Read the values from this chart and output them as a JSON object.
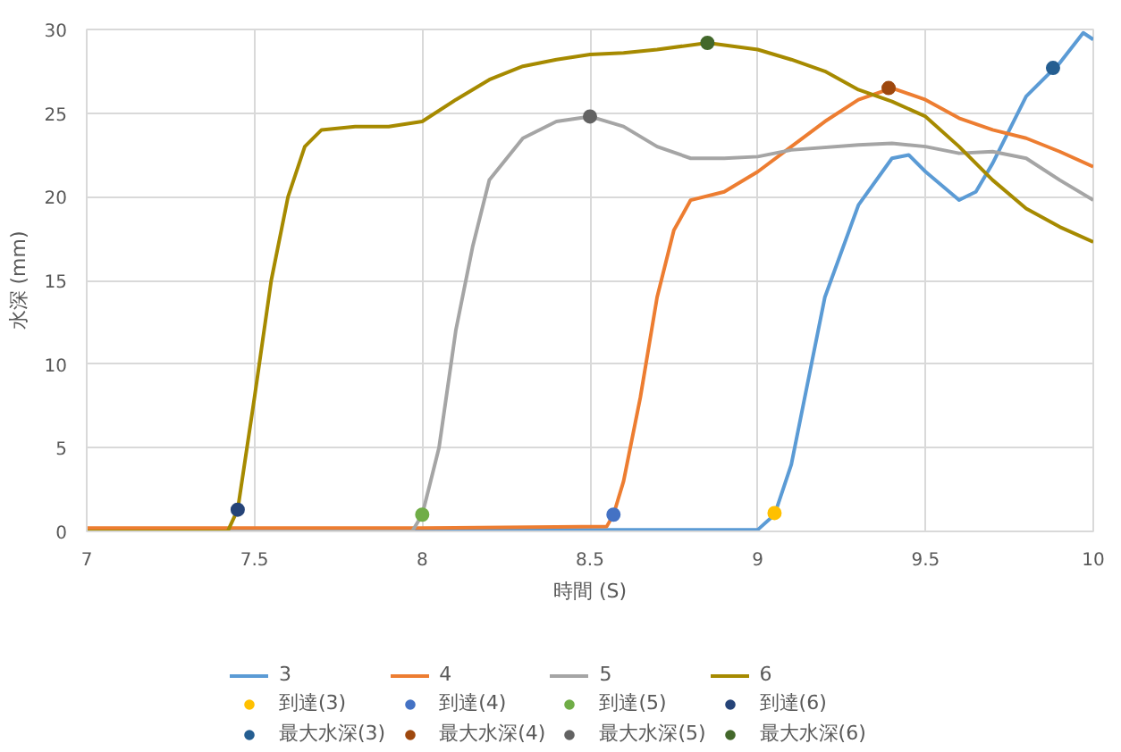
{
  "chart_data": {
    "type": "line",
    "xlabel": "時間 (S)",
    "ylabel": "水深 (mm)",
    "xlim": [
      7,
      10
    ],
    "ylim": [
      0,
      30
    ],
    "xticks": [
      7,
      7.5,
      8,
      8.5,
      9,
      9.5,
      10
    ],
    "yticks": [
      0,
      5,
      10,
      15,
      20,
      25,
      30
    ],
    "grid": true,
    "legend": "bottom",
    "series": [
      {
        "name": "3",
        "color": "#5b9bd5",
        "x": [
          7,
          8.5,
          9.0,
          9.05,
          9.1,
          9.15,
          9.2,
          9.3,
          9.4,
          9.45,
          9.5,
          9.6,
          9.65,
          9.7,
          9.8,
          9.9,
          9.97,
          10.0
        ],
        "values": [
          0.1,
          0.1,
          0.1,
          1,
          4,
          9,
          14,
          19.5,
          22.3,
          22.5,
          21.5,
          19.8,
          20.3,
          22,
          26,
          28,
          29.8,
          29.4
        ]
      },
      {
        "name": "4",
        "color": "#ed7d31",
        "x": [
          7,
          8.0,
          8.55,
          8.57,
          8.6,
          8.65,
          8.7,
          8.75,
          8.8,
          8.9,
          9.0,
          9.1,
          9.2,
          9.3,
          9.4,
          9.5,
          9.6,
          9.7,
          9.8,
          9.9,
          10.0
        ],
        "values": [
          0.2,
          0.2,
          0.3,
          1,
          3,
          8,
          14,
          18,
          19.8,
          20.3,
          21.5,
          23,
          24.5,
          25.8,
          26.5,
          25.8,
          24.7,
          24,
          23.5,
          22.7,
          21.8
        ]
      },
      {
        "name": "5",
        "color": "#a5a5a5",
        "x": [
          7,
          7.97,
          8.0,
          8.05,
          8.1,
          8.15,
          8.2,
          8.3,
          8.4,
          8.5,
          8.6,
          8.7,
          8.8,
          8.9,
          9.0,
          9.1,
          9.3,
          9.4,
          9.5,
          9.6,
          9.7,
          9.8,
          9.9,
          10.0
        ],
        "values": [
          0,
          0,
          1,
          5,
          12,
          17,
          21,
          23.5,
          24.5,
          24.8,
          24.2,
          23,
          22.3,
          22.3,
          22.4,
          22.8,
          23.1,
          23.2,
          23,
          22.6,
          22.7,
          22.3,
          21,
          19.8
        ]
      },
      {
        "name": "6",
        "color": "#a68a00",
        "x": [
          7,
          7.42,
          7.45,
          7.5,
          7.55,
          7.6,
          7.65,
          7.7,
          7.8,
          7.9,
          8.0,
          8.1,
          8.2,
          8.3,
          8.4,
          8.5,
          8.6,
          8.7,
          8.85,
          9.0,
          9.1,
          9.2,
          9.3,
          9.4,
          9.5,
          9.6,
          9.7,
          9.8,
          9.9,
          10.0
        ],
        "values": [
          0,
          0,
          1.3,
          8,
          15,
          20,
          23,
          24,
          24.2,
          24.2,
          24.5,
          25.8,
          27,
          27.8,
          28.2,
          28.5,
          28.6,
          28.8,
          29.2,
          28.8,
          28.2,
          27.5,
          26.4,
          25.7,
          24.8,
          23,
          21,
          19.3,
          18.2,
          17.3
        ]
      },
      {
        "name": "到達(3)",
        "type": "scatter",
        "marker": "circle",
        "color": "#ffc000",
        "x": [
          9.05
        ],
        "values": [
          1.1
        ]
      },
      {
        "name": "到達(4)",
        "type": "scatter",
        "marker": "circle",
        "color": "#4472c4",
        "x": [
          8.57
        ],
        "values": [
          1.0
        ]
      },
      {
        "name": "到達(5)",
        "type": "scatter",
        "marker": "circle",
        "color": "#70ad47",
        "x": [
          8.0
        ],
        "values": [
          1.0
        ]
      },
      {
        "name": "到達(6)",
        "type": "scatter",
        "marker": "circle",
        "color": "#264478",
        "x": [
          7.45
        ],
        "values": [
          1.3
        ]
      },
      {
        "name": "最大水深(3)",
        "type": "scatter",
        "marker": "circle",
        "color": "#255e91",
        "x": [
          9.88
        ],
        "values": [
          27.7
        ]
      },
      {
        "name": "最大水深(4)",
        "type": "scatter",
        "marker": "circle",
        "color": "#9e480e",
        "x": [
          9.39
        ],
        "values": [
          26.5
        ]
      },
      {
        "name": "最大水深(5)",
        "type": "scatter",
        "marker": "circle",
        "color": "#636363",
        "x": [
          8.5
        ],
        "values": [
          24.8
        ]
      },
      {
        "name": "最大水深(6)",
        "type": "scatter",
        "marker": "circle",
        "color": "#43682b",
        "x": [
          8.85
        ],
        "values": [
          29.2
        ]
      }
    ]
  }
}
